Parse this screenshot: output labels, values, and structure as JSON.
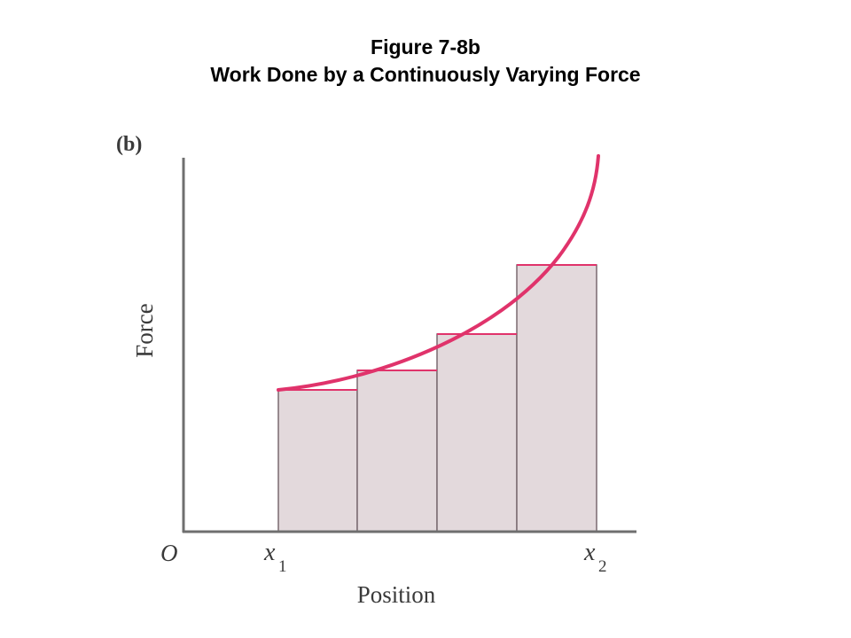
{
  "slide": {
    "title_line1": "Figure 7-8b",
    "title_line2": "Work Done by a Continuously Varying Force"
  },
  "figure": {
    "panel_label": "(b)",
    "ylabel": "Force",
    "xlabel": "Position",
    "origin_label": "O",
    "x1_var": "x",
    "x1_sub": "1",
    "x2_var": "x",
    "x2_sub": "2"
  },
  "colors": {
    "curve": "#e0336b",
    "rect_fill": "#e3d9dc",
    "rect_stroke": "#7a6a70",
    "axis": "#6f6f6f",
    "text": "#3a3a3a"
  }
}
